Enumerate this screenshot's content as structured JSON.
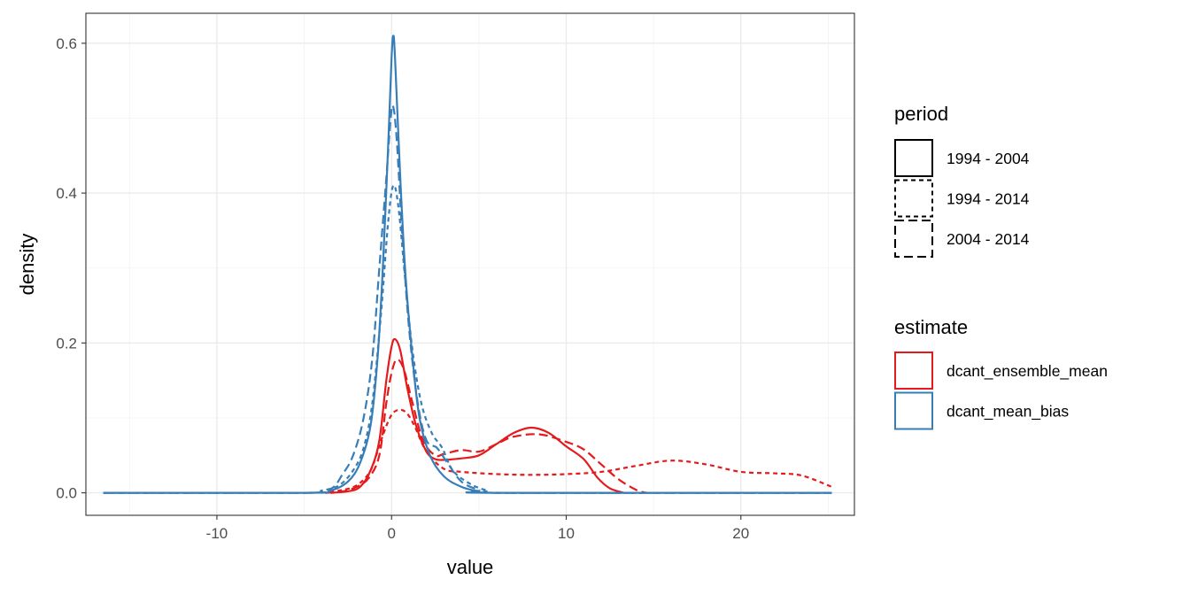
{
  "chart_data": {
    "type": "line",
    "xlabel": "value",
    "ylabel": "density",
    "xlim": [
      -17.5,
      26.5
    ],
    "ylim": [
      -0.03,
      0.64
    ],
    "x_ticks": [
      -10,
      0,
      10,
      20
    ],
    "x_tick_labels": [
      "-10",
      "0",
      "10",
      "20"
    ],
    "y_ticks": [
      0.0,
      0.2,
      0.4,
      0.6
    ],
    "y_tick_labels": [
      "0.0",
      "0.2",
      "0.4",
      "0.6"
    ],
    "grid": true,
    "legend_position": "right",
    "legends": [
      {
        "title": "period",
        "entries": [
          {
            "label": "1994 - 2004",
            "linetype": "solid"
          },
          {
            "label": "1994 - 2014",
            "linetype": "dotted"
          },
          {
            "label": "2004 - 2014",
            "linetype": "dashed"
          }
        ]
      },
      {
        "title": "estimate",
        "entries": [
          {
            "label": "dcant_ensemble_mean",
            "color": "#e41a1c"
          },
          {
            "label": "dcant_mean_bias",
            "color": "#377eb8"
          }
        ]
      }
    ],
    "series": [
      {
        "estimate": "dcant_ensemble_mean",
        "period": "1994 - 2004",
        "color": "#e41a1c",
        "linetype": "solid",
        "points": [
          [
            -3.5,
            0.0
          ],
          [
            -2.5,
            0.002
          ],
          [
            -1.8,
            0.008
          ],
          [
            -1.2,
            0.03
          ],
          [
            -0.7,
            0.07
          ],
          [
            -0.3,
            0.15
          ],
          [
            0.0,
            0.195
          ],
          [
            0.2,
            0.205
          ],
          [
            0.5,
            0.19
          ],
          [
            0.9,
            0.14
          ],
          [
            1.4,
            0.09
          ],
          [
            2.0,
            0.055
          ],
          [
            2.5,
            0.045
          ],
          [
            3.0,
            0.044
          ],
          [
            4.0,
            0.046
          ],
          [
            5.0,
            0.05
          ],
          [
            6.0,
            0.065
          ],
          [
            7.0,
            0.08
          ],
          [
            8.0,
            0.087
          ],
          [
            9.0,
            0.08
          ],
          [
            10.0,
            0.062
          ],
          [
            11.0,
            0.045
          ],
          [
            11.8,
            0.02
          ],
          [
            12.5,
            0.006
          ],
          [
            13.3,
            0.0
          ]
        ]
      },
      {
        "estimate": "dcant_ensemble_mean",
        "period": "2004 - 2014",
        "color": "#e41a1c",
        "linetype": "dashed",
        "points": [
          [
            -3.8,
            0.0
          ],
          [
            -2.8,
            0.002
          ],
          [
            -2.0,
            0.008
          ],
          [
            -1.3,
            0.02
          ],
          [
            -0.7,
            0.05
          ],
          [
            -0.3,
            0.12
          ],
          [
            0.0,
            0.16
          ],
          [
            0.3,
            0.178
          ],
          [
            0.7,
            0.165
          ],
          [
            1.2,
            0.12
          ],
          [
            1.8,
            0.07
          ],
          [
            2.5,
            0.05
          ],
          [
            3.0,
            0.052
          ],
          [
            4.0,
            0.057
          ],
          [
            5.0,
            0.055
          ],
          [
            6.0,
            0.065
          ],
          [
            7.0,
            0.075
          ],
          [
            8.5,
            0.078
          ],
          [
            10.0,
            0.068
          ],
          [
            11.0,
            0.058
          ],
          [
            12.0,
            0.038
          ],
          [
            13.0,
            0.018
          ],
          [
            14.0,
            0.004
          ],
          [
            14.6,
            0.0
          ]
        ]
      },
      {
        "estimate": "dcant_ensemble_mean",
        "period": "1994 - 2014",
        "color": "#e41a1c",
        "linetype": "dotted",
        "points": [
          [
            -4.0,
            0.0
          ],
          [
            -3.0,
            0.003
          ],
          [
            -2.0,
            0.01
          ],
          [
            -1.2,
            0.03
          ],
          [
            -0.6,
            0.07
          ],
          [
            -0.1,
            0.1
          ],
          [
            0.3,
            0.11
          ],
          [
            0.8,
            0.108
          ],
          [
            1.3,
            0.09
          ],
          [
            2.0,
            0.055
          ],
          [
            3.0,
            0.032
          ],
          [
            4.0,
            0.028
          ],
          [
            6.0,
            0.025
          ],
          [
            8.0,
            0.024
          ],
          [
            10.0,
            0.025
          ],
          [
            12.0,
            0.028
          ],
          [
            14.0,
            0.036
          ],
          [
            16.0,
            0.043
          ],
          [
            18.0,
            0.038
          ],
          [
            20.0,
            0.028
          ],
          [
            22.0,
            0.026
          ],
          [
            23.5,
            0.023
          ],
          [
            25.2,
            0.008
          ]
        ]
      },
      {
        "estimate": "dcant_mean_bias",
        "period": "1994 - 2004",
        "color": "#377eb8",
        "linetype": "solid",
        "points": [
          [
            -16.5,
            0.0
          ],
          [
            -5.0,
            0.0
          ],
          [
            -3.5,
            0.003
          ],
          [
            -2.5,
            0.015
          ],
          [
            -1.8,
            0.04
          ],
          [
            -1.2,
            0.09
          ],
          [
            -0.8,
            0.18
          ],
          [
            -0.5,
            0.3
          ],
          [
            -0.2,
            0.46
          ],
          [
            0.0,
            0.58
          ],
          [
            0.1,
            0.61
          ],
          [
            0.2,
            0.58
          ],
          [
            0.5,
            0.42
          ],
          [
            0.8,
            0.29
          ],
          [
            1.2,
            0.18
          ],
          [
            1.6,
            0.1
          ],
          [
            2.2,
            0.05
          ],
          [
            3.0,
            0.022
          ],
          [
            4.0,
            0.008
          ],
          [
            5.0,
            0.002
          ],
          [
            6.0,
            0.0
          ],
          [
            25.2,
            0.0
          ]
        ]
      },
      {
        "estimate": "dcant_mean_bias",
        "period": "2004 - 2014",
        "color": "#377eb8",
        "linetype": "dashed",
        "points": [
          [
            -16.5,
            0.0
          ],
          [
            -5.0,
            0.0
          ],
          [
            -3.5,
            0.005
          ],
          [
            -2.8,
            0.025
          ],
          [
            -2.2,
            0.05
          ],
          [
            -1.6,
            0.1
          ],
          [
            -1.1,
            0.18
          ],
          [
            -0.7,
            0.3
          ],
          [
            -0.3,
            0.42
          ],
          [
            -0.05,
            0.5
          ],
          [
            0.1,
            0.515
          ],
          [
            0.3,
            0.47
          ],
          [
            0.6,
            0.35
          ],
          [
            1.0,
            0.22
          ],
          [
            1.5,
            0.12
          ],
          [
            2.0,
            0.07
          ],
          [
            2.6,
            0.06
          ],
          [
            3.2,
            0.04
          ],
          [
            4.0,
            0.015
          ],
          [
            5.0,
            0.004
          ],
          [
            6.0,
            0.0
          ],
          [
            25.2,
            0.0
          ]
        ]
      },
      {
        "estimate": "dcant_mean_bias",
        "period": "1994 - 2014",
        "color": "#377eb8",
        "linetype": "dotted",
        "points": [
          [
            -16.5,
            0.0
          ],
          [
            -5.0,
            0.0
          ],
          [
            -4.0,
            0.003
          ],
          [
            -3.0,
            0.01
          ],
          [
            -2.2,
            0.03
          ],
          [
            -1.6,
            0.06
          ],
          [
            -1.1,
            0.12
          ],
          [
            -0.6,
            0.24
          ],
          [
            -0.2,
            0.36
          ],
          [
            0.1,
            0.41
          ],
          [
            0.4,
            0.38
          ],
          [
            0.8,
            0.28
          ],
          [
            1.2,
            0.19
          ],
          [
            1.7,
            0.12
          ],
          [
            2.3,
            0.08
          ],
          [
            2.9,
            0.06
          ],
          [
            3.5,
            0.03
          ],
          [
            4.5,
            0.012
          ],
          [
            5.5,
            0.003
          ],
          [
            6.5,
            0.0
          ],
          [
            25.2,
            0.0
          ]
        ]
      }
    ]
  }
}
